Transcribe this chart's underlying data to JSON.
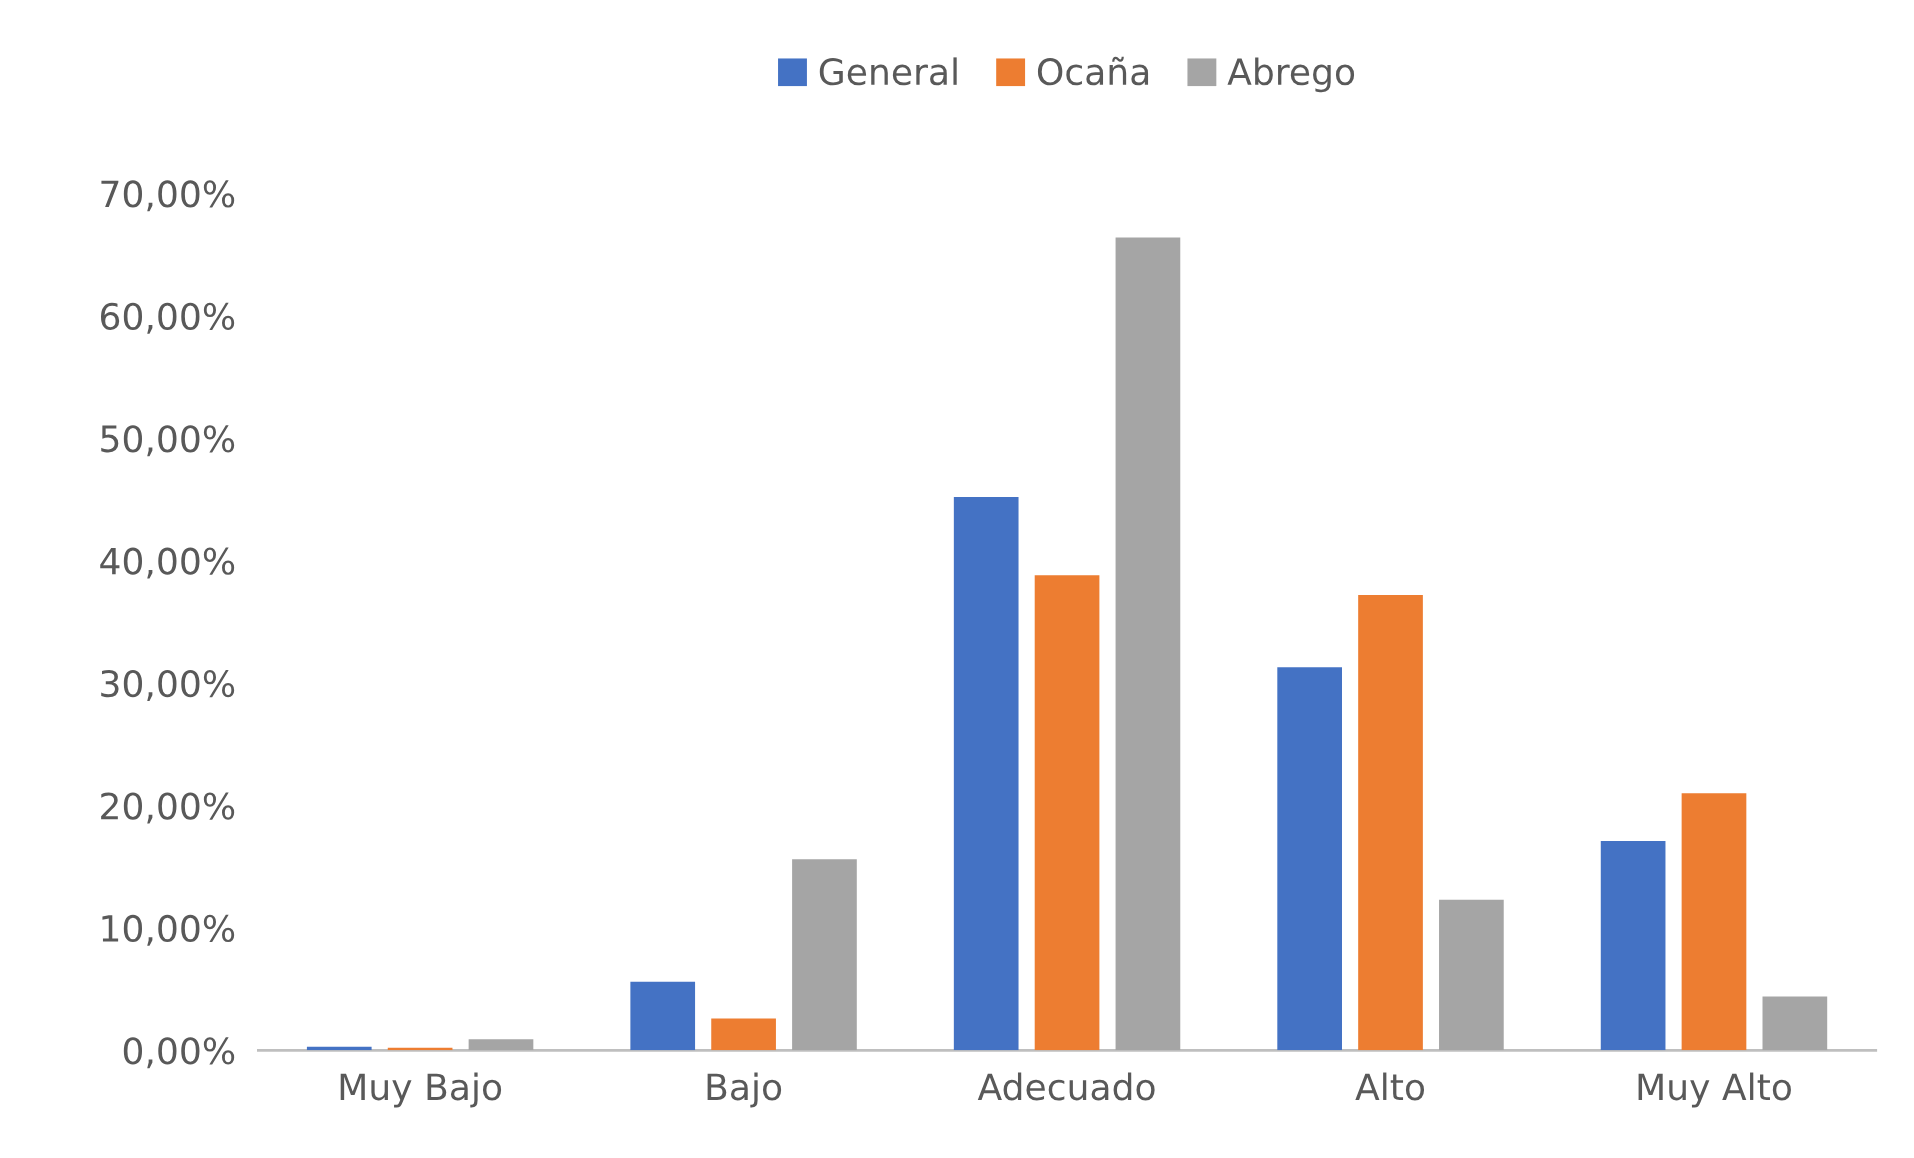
{
  "chart_data": {
    "type": "bar",
    "categories": [
      "Muy Bajo",
      "Bajo",
      "Adecuado",
      "Alto",
      "Muy Alto"
    ],
    "series": [
      {
        "name": "General",
        "color": "#4472c4",
        "values": [
          0.3,
          5.6,
          45.2,
          31.3,
          17.1
        ]
      },
      {
        "name": "Ocaña",
        "color": "#ed7d31",
        "values": [
          0.2,
          2.6,
          38.8,
          37.2,
          21.0
        ]
      },
      {
        "name": "Abrego",
        "color": "#a5a5a5",
        "values": [
          0.9,
          15.6,
          66.4,
          12.3,
          4.4
        ]
      }
    ],
    "ylim": [
      0,
      70
    ],
    "yticks": [
      {
        "value": 0,
        "label": "0,00%"
      },
      {
        "value": 10,
        "label": "10,00%"
      },
      {
        "value": 20,
        "label": "20,00%"
      },
      {
        "value": 30,
        "label": "30,00%"
      },
      {
        "value": 40,
        "label": "40,00%"
      },
      {
        "value": 50,
        "label": "50,00%"
      },
      {
        "value": 60,
        "label": "60,00%"
      },
      {
        "value": 70,
        "label": "70,00%"
      }
    ],
    "grid": false,
    "legend": "top"
  }
}
